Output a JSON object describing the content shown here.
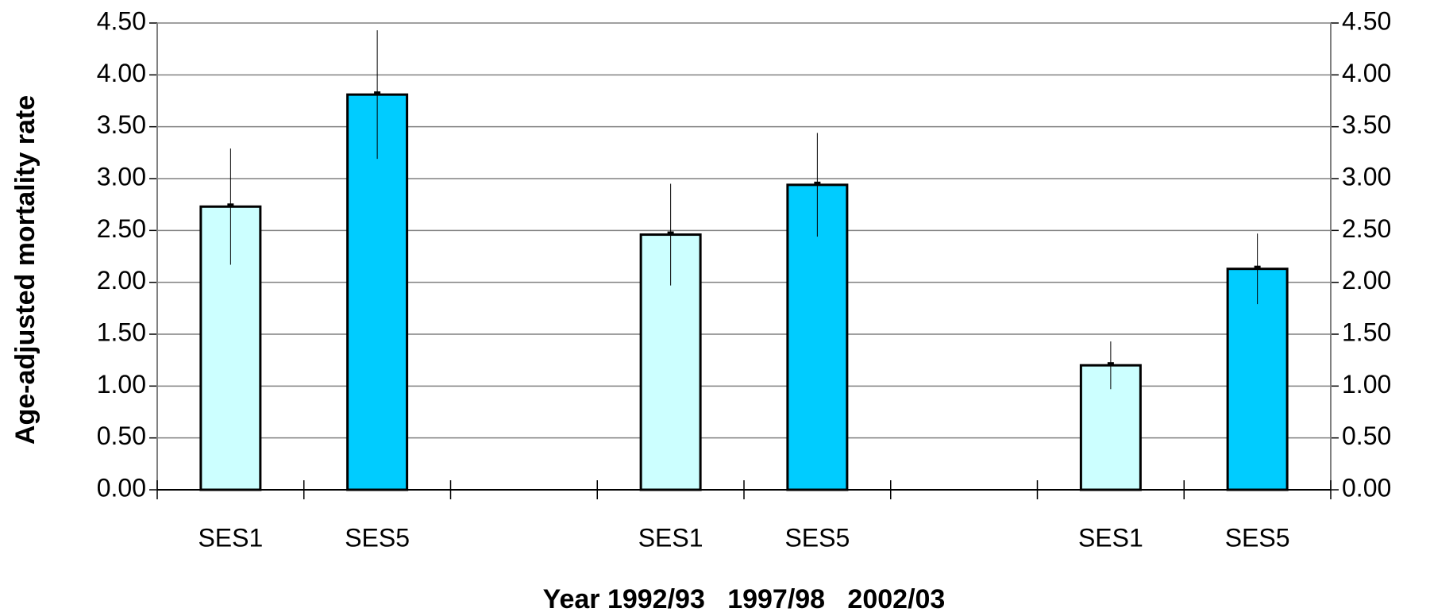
{
  "chart_data": {
    "type": "bar",
    "y_label": "Age-adjusted mortality rate",
    "x_label": "Year 1992/93   1997/98   2002/03",
    "categories": [
      "SES1",
      "SES5",
      null,
      "SES1",
      "SES5",
      null,
      "SES1",
      "SES5"
    ],
    "values": [
      2.73,
      3.81,
      null,
      2.46,
      2.94,
      null,
      1.2,
      2.13
    ],
    "errors": [
      0.56,
      0.62,
      null,
      0.49,
      0.5,
      null,
      0.23,
      0.34
    ],
    "colors": [
      "#ccffff",
      "#00ccff",
      null,
      "#ccffff",
      "#00ccff",
      null,
      "#ccffff",
      "#00ccff"
    ],
    "ylim": [
      0,
      4.5
    ],
    "yticks": [
      {
        "value": 0,
        "label": "0.00"
      },
      {
        "value": 0.5,
        "label": "0.50"
      },
      {
        "value": 1,
        "label": "1.00"
      },
      {
        "value": 1.5,
        "label": "1.50"
      },
      {
        "value": 2,
        "label": "2.00"
      },
      {
        "value": 2.5,
        "label": "2.50"
      },
      {
        "value": 3,
        "label": "3.00"
      },
      {
        "value": 3.5,
        "label": "3.50"
      },
      {
        "value": 4,
        "label": "4.00"
      },
      {
        "value": 4.5,
        "label": "4.50"
      }
    ],
    "y2lim": [
      0,
      4.5
    ],
    "y2ticks": [
      {
        "value": 0,
        "label": "0.00"
      },
      {
        "value": 0.5,
        "label": "0.50"
      },
      {
        "value": 1,
        "label": "1.00"
      },
      {
        "value": 1.5,
        "label": "1.50"
      },
      {
        "value": 2,
        "label": "2.00"
      },
      {
        "value": 2.5,
        "label": "2.50"
      },
      {
        "value": 3,
        "label": "3.00"
      },
      {
        "value": 3.5,
        "label": "3.50"
      },
      {
        "value": 4,
        "label": "4.00"
      },
      {
        "value": 4.5,
        "label": "4.50"
      }
    ],
    "grid": true
  }
}
